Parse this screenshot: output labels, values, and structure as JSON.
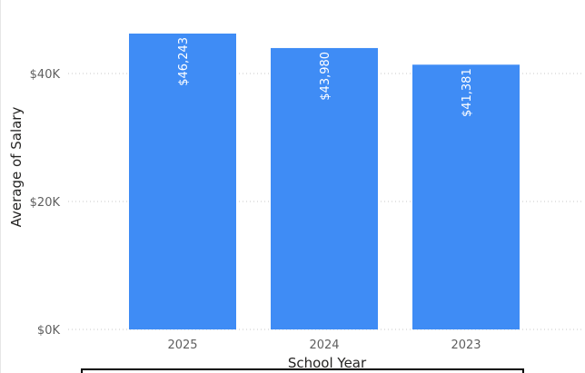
{
  "chart_data": {
    "type": "bar",
    "categories": [
      "2025",
      "2024",
      "2023"
    ],
    "values": [
      46243,
      43980,
      41381
    ],
    "data_labels": [
      "$46,243",
      "$43,980",
      "$41,381"
    ],
    "xlabel": "School Year",
    "ylabel": "Average of Salary",
    "ylim": [
      0,
      48000
    ],
    "yticks": [
      0,
      20000,
      40000
    ],
    "ytick_labels": [
      "$0K",
      "$20K",
      "$40K"
    ],
    "grid": true,
    "bar_color": "#3F8CF5"
  }
}
